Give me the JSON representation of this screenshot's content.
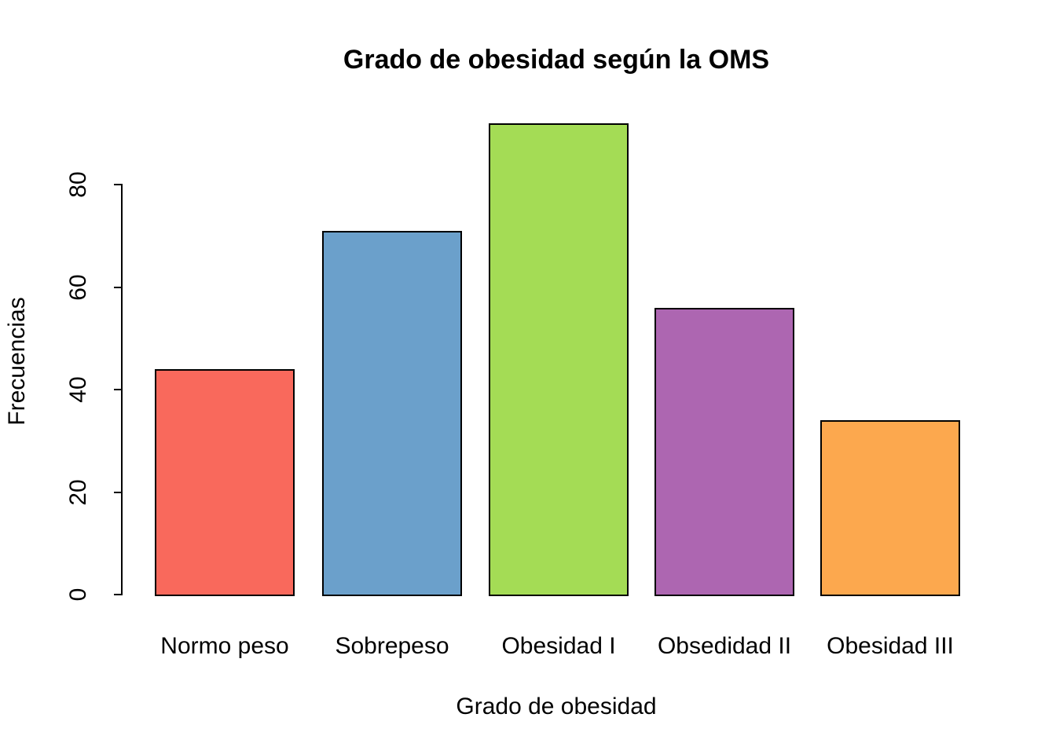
{
  "chart_data": {
    "type": "bar",
    "title": "Grado de obesidad según la OMS",
    "xlabel": "Grado de obesidad",
    "ylabel": "Frecuencias",
    "categories": [
      "Normo peso",
      "Sobrepeso",
      "Obesidad I",
      "Obsedidad II",
      "Obesidad III"
    ],
    "values": [
      44,
      71,
      92,
      56,
      34
    ],
    "bar_colors": [
      "#F9695C",
      "#6BA0CB",
      "#A4DC55",
      "#AD66B1",
      "#FCA84E"
    ],
    "bar_border_color": "#000000",
    "yticks": [
      0,
      20,
      40,
      60,
      80
    ],
    "ylim": [
      0,
      96
    ],
    "grid": false,
    "legend": "none",
    "axis_color": "#000000",
    "background": "#FFFFFF"
  }
}
